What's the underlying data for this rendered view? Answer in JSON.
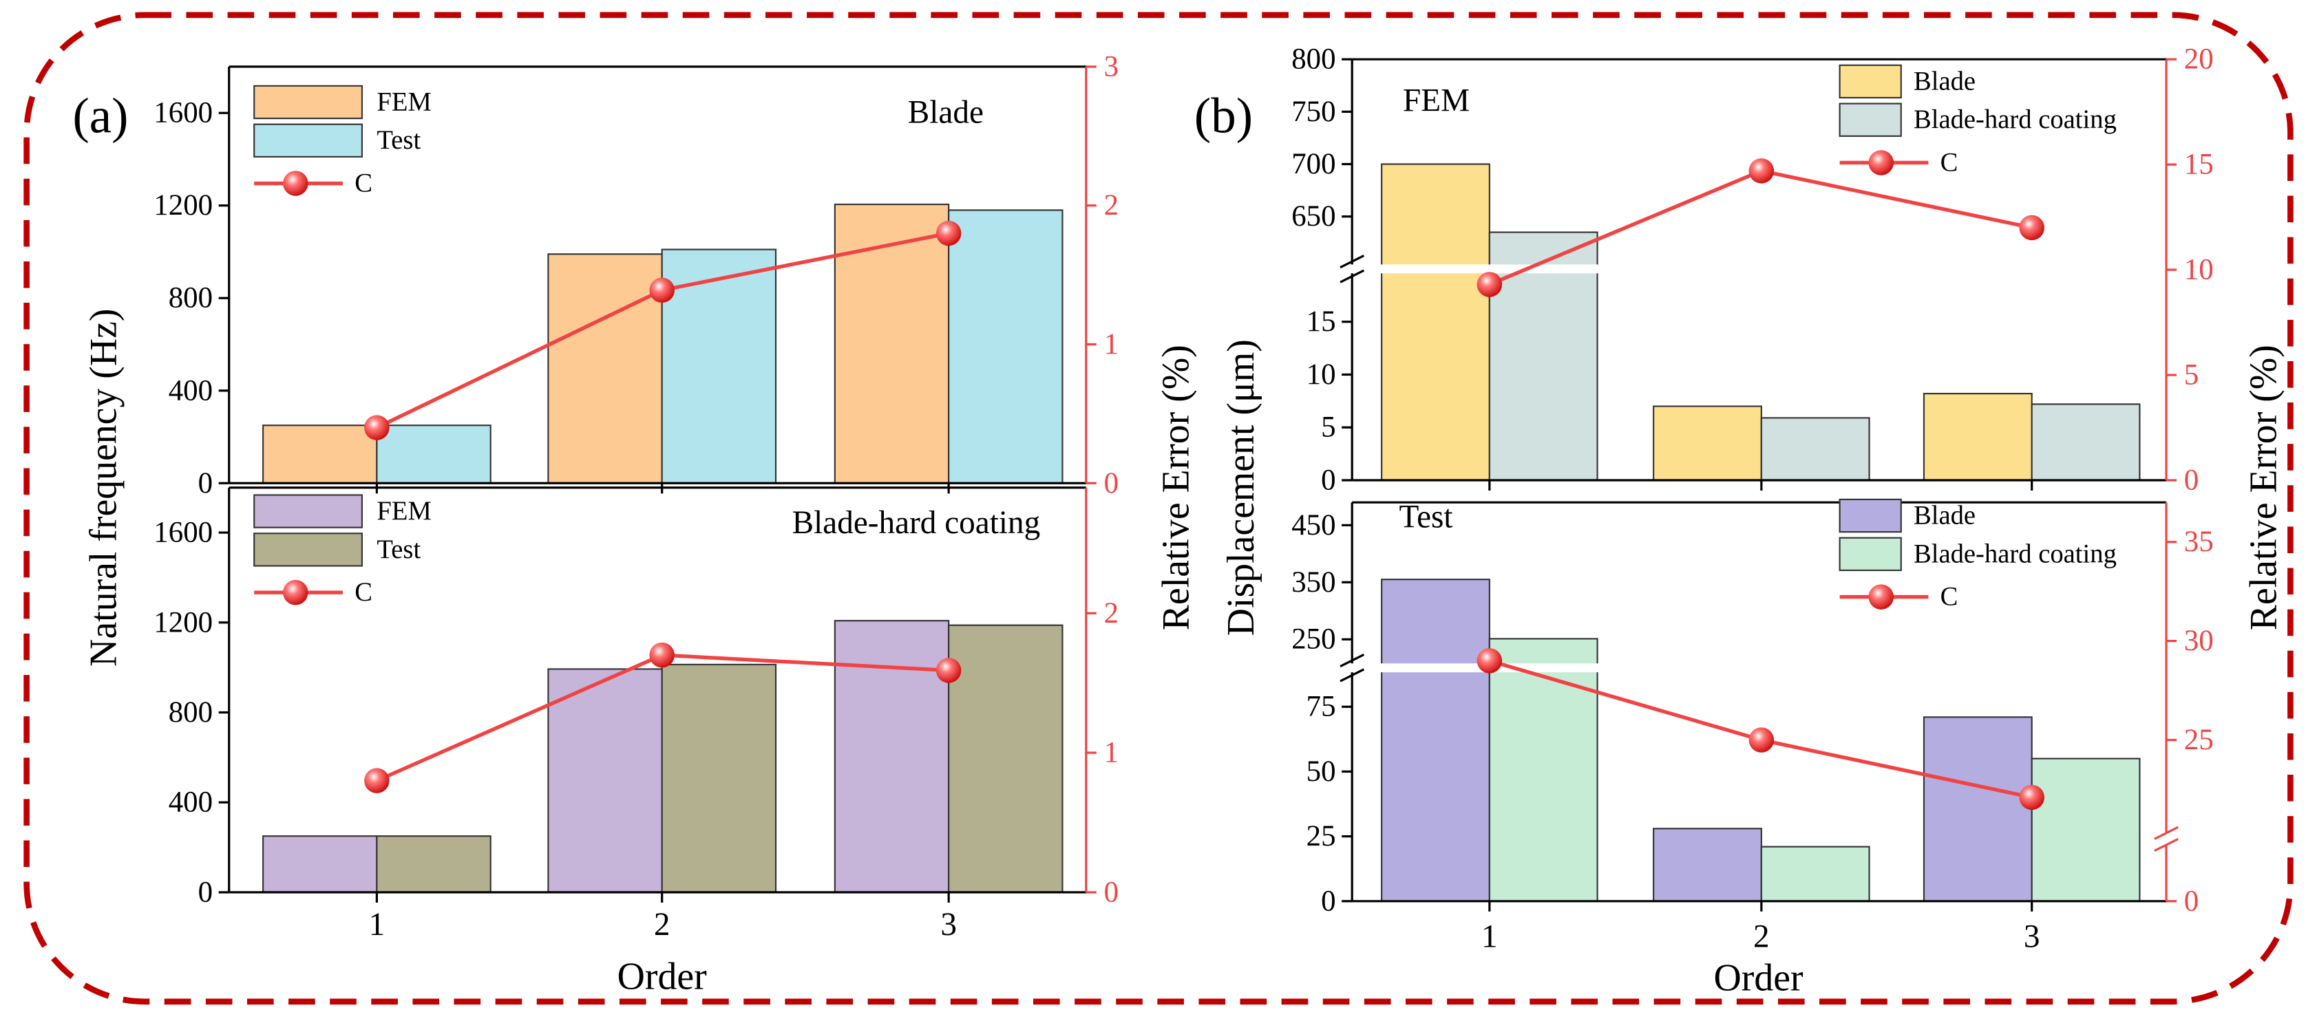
{
  "chart_data": [
    {
      "type": "bar",
      "panel": "(a)",
      "annotation": "Blade",
      "ylabel": "Natural frequency (Hz)",
      "y2label": "Relative Error (%)",
      "ylim": [
        0,
        1800
      ],
      "yticks": [
        0,
        400,
        800,
        1200,
        1600
      ],
      "y2lim": [
        0,
        3
      ],
      "y2ticks": [
        0,
        1,
        2,
        3
      ],
      "series": [
        {
          "name": "FEM",
          "color": "#fdca94",
          "values": [
            250,
            990,
            1205
          ]
        },
        {
          "name": "Test",
          "color": "#b1e4ec",
          "values": [
            250,
            1010,
            1180
          ]
        },
        {
          "name": "C",
          "type": "line",
          "axis": "y2",
          "color": "#f04444",
          "values": [
            0.4,
            1.39,
            1.8
          ]
        }
      ]
    },
    {
      "type": "bar",
      "annotation": "Blade-hard coating",
      "xlabel": "Order",
      "categories": [
        "1",
        "2",
        "3"
      ],
      "ylim": [
        0,
        1800
      ],
      "yticks": [
        0,
        400,
        800,
        1200,
        1600
      ],
      "y2lim": [
        0,
        2.9
      ],
      "y2ticks": [
        0,
        1,
        2
      ],
      "series": [
        {
          "name": "FEM",
          "color": "#c6b4d9",
          "values": [
            250,
            993,
            1208
          ]
        },
        {
          "name": "Test",
          "color": "#b3b08f",
          "values": [
            250,
            1013,
            1188
          ]
        },
        {
          "name": "C",
          "type": "line",
          "axis": "y2",
          "color": "#f04444",
          "values": [
            0.8,
            1.7,
            1.59
          ]
        }
      ]
    },
    {
      "type": "bar",
      "panel": "(b)",
      "annotation": "FEM",
      "ylabel": "Displacement (μm)",
      "y2label": "Relative Error (%)",
      "ysegments": [
        {
          "ylim": [
            0,
            20
          ],
          "yticks": [
            0,
            5,
            10,
            15
          ]
        },
        {
          "ylim": [
            600,
            800
          ],
          "yticks": [
            650,
            700,
            750,
            800
          ]
        }
      ],
      "y2lim": [
        0,
        20
      ],
      "y2ticks": [
        0,
        5,
        10,
        15,
        20
      ],
      "series": [
        {
          "name": "Blade",
          "color": "#fde08e",
          "values": [
            700,
            7,
            8.2
          ]
        },
        {
          "name": "Blade-hard coating",
          "color": "#d0e1e0",
          "values": [
            635,
            5.9,
            7.2
          ]
        },
        {
          "name": "C",
          "type": "line",
          "axis": "y2",
          "color": "#f04444",
          "values": [
            9.3,
            14.7,
            12
          ]
        }
      ]
    },
    {
      "type": "bar",
      "annotation": "Test",
      "xlabel": "Order",
      "categories": [
        "1",
        "2",
        "3"
      ],
      "ysegments": [
        {
          "ylim": [
            0,
            90
          ],
          "yticks": [
            0,
            25,
            50,
            75
          ]
        },
        {
          "ylim": [
            200,
            490
          ],
          "yticks": [
            250,
            350,
            450
          ]
        }
      ],
      "y2segments": [
        {
          "y2lim": [
            0,
            5
          ],
          "y2ticks": [
            0
          ]
        },
        {
          "y2lim": [
            20,
            37
          ],
          "y2ticks": [
            25,
            30,
            35
          ]
        }
      ],
      "series": [
        {
          "name": "Blade",
          "color": "#b3aedf",
          "values": [
            355,
            28,
            71
          ]
        },
        {
          "name": "Blade-hard coating",
          "color": "#c6ecd6",
          "values": [
            251,
            21,
            55
          ]
        },
        {
          "name": "C",
          "type": "line",
          "axis": "y2",
          "color": "#f04444",
          "values": [
            29,
            25,
            22.1
          ]
        }
      ]
    }
  ]
}
